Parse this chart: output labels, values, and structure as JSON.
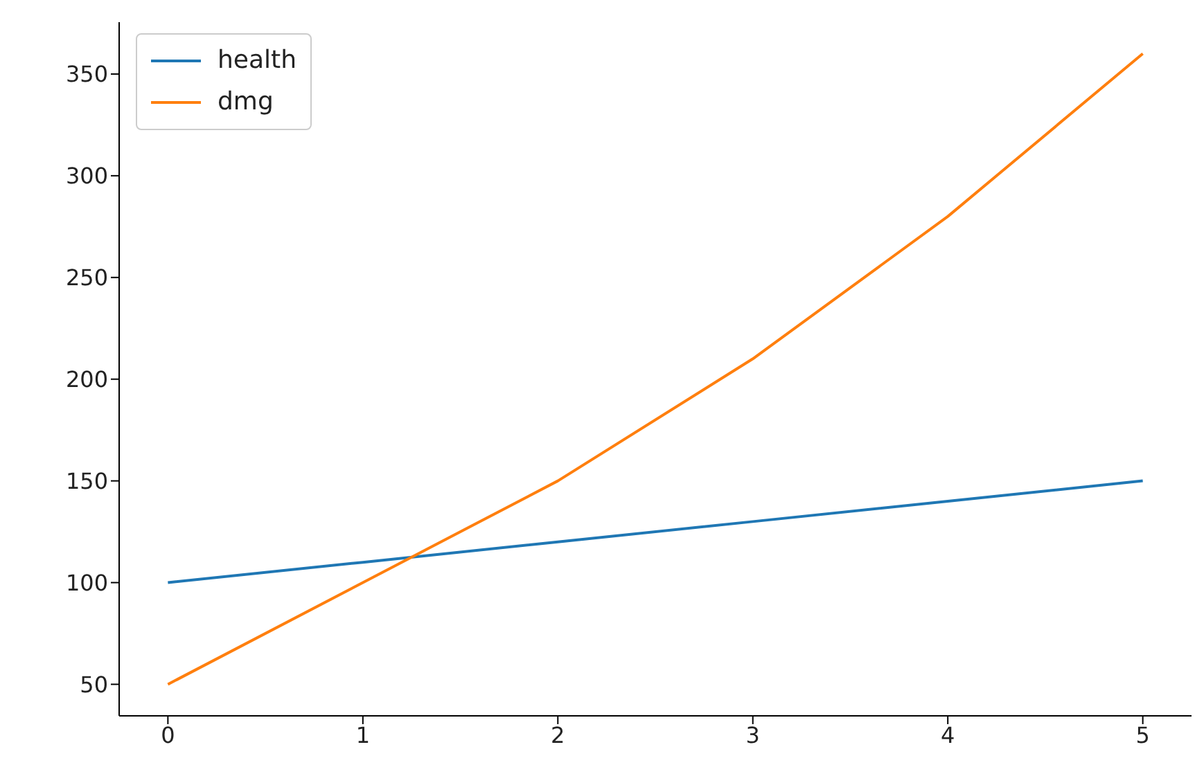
{
  "chart_data": {
    "type": "line",
    "x": [
      0,
      1,
      2,
      3,
      4,
      5
    ],
    "series": [
      {
        "name": "health",
        "color": "#1f77b4",
        "values": [
          100,
          110,
          120,
          130,
          140,
          150
        ]
      },
      {
        "name": "dmg",
        "color": "#ff7f0e",
        "values": [
          50,
          100,
          150,
          210,
          280,
          360
        ]
      }
    ],
    "xlim": [
      -0.25,
      5.25
    ],
    "xticks": [
      0,
      1,
      2,
      3,
      4,
      5
    ],
    "ylim": [
      34.5,
      375.5
    ],
    "yticks": [
      50,
      100,
      150,
      200,
      250,
      300,
      350
    ],
    "legend": "top left",
    "grid": false,
    "marker": "none",
    "line_style": "solid"
  }
}
